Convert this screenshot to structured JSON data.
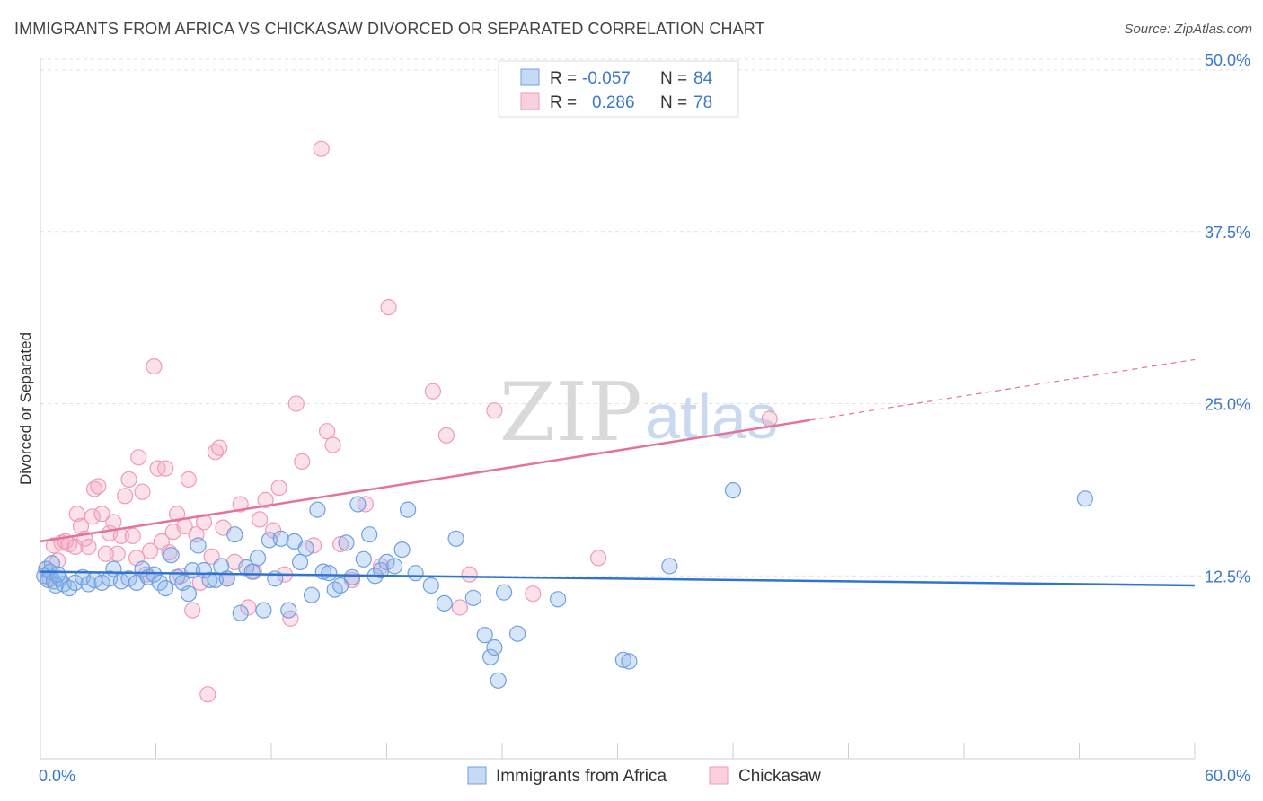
{
  "title": "IMMIGRANTS FROM AFRICA VS CHICKASAW DIVORCED OR SEPARATED CORRELATION CHART",
  "source": "Source: ZipAtlas.com",
  "watermark": {
    "zip": "ZIP",
    "atlas": "atlas"
  },
  "legend_box": {
    "rows": [
      {
        "r_label": "R =",
        "r_value": "-0.057",
        "n_label": "N =",
        "n_value": "84"
      },
      {
        "r_label": "R =",
        "r_value": "0.286",
        "n_label": "N =",
        "n_value": "78"
      }
    ]
  },
  "bottom_legend": [
    "Immigrants from Africa",
    "Chickasaw"
  ],
  "chart_data": {
    "type": "scatter",
    "title": "IMMIGRANTS FROM AFRICA VS CHICKASAW DIVORCED OR SEPARATED CORRELATION CHART",
    "ylabel": "Divorced or Separated",
    "xlabel": "",
    "xlim": [
      0,
      60
    ],
    "ylim": [
      0,
      50
    ],
    "x_tick_labels": [
      "0.0%",
      "60.0%"
    ],
    "y_ticks": [
      12.5,
      25.0,
      37.5,
      50.0
    ],
    "y_tick_labels": [
      "12.5%",
      "25.0%",
      "37.5%",
      "50.0%"
    ],
    "grid": "horizontal dashed",
    "colors": {
      "africa": "#6fa0e0",
      "chickasaw": "#f09ab8",
      "africa_line": "#2f74d0",
      "chickasaw_line": "#e4739a",
      "tick": "#3b78c7"
    },
    "series": [
      {
        "name": "Immigrants from Africa",
        "color": "#6fa0e0",
        "trend": {
          "x0": 0,
          "y0": 12.8,
          "x1": 60,
          "y1": 11.8
        },
        "points": [
          [
            0.2,
            12.5
          ],
          [
            0.3,
            13.0
          ],
          [
            0.4,
            12.2
          ],
          [
            0.5,
            12.8
          ],
          [
            0.6,
            13.4
          ],
          [
            0.7,
            12.1
          ],
          [
            0.8,
            11.8
          ],
          [
            1.0,
            12.3
          ],
          [
            1.2,
            11.9
          ],
          [
            1.5,
            11.6
          ],
          [
            1.8,
            12.0
          ],
          [
            2.2,
            12.4
          ],
          [
            2.5,
            11.9
          ],
          [
            2.8,
            12.2
          ],
          [
            3.2,
            12.0
          ],
          [
            3.6,
            12.3
          ],
          [
            3.8,
            13.0
          ],
          [
            4.2,
            12.1
          ],
          [
            4.6,
            12.3
          ],
          [
            5.0,
            12.0
          ],
          [
            5.3,
            13.0
          ],
          [
            5.6,
            12.4
          ],
          [
            5.9,
            12.6
          ],
          [
            6.2,
            12.0
          ],
          [
            6.5,
            11.6
          ],
          [
            6.8,
            14.0
          ],
          [
            7.1,
            12.4
          ],
          [
            7.4,
            12.0
          ],
          [
            7.7,
            11.2
          ],
          [
            7.9,
            12.9
          ],
          [
            8.2,
            14.7
          ],
          [
            8.5,
            12.9
          ],
          [
            8.8,
            12.2
          ],
          [
            9.1,
            12.2
          ],
          [
            9.4,
            13.2
          ],
          [
            9.7,
            12.3
          ],
          [
            10.1,
            15.5
          ],
          [
            10.4,
            9.8
          ],
          [
            10.7,
            13.1
          ],
          [
            11.0,
            12.8
          ],
          [
            11.3,
            13.8
          ],
          [
            11.6,
            10.0
          ],
          [
            11.9,
            15.1
          ],
          [
            12.2,
            12.3
          ],
          [
            12.5,
            15.2
          ],
          [
            12.9,
            10.0
          ],
          [
            13.2,
            15.0
          ],
          [
            13.5,
            13.5
          ],
          [
            13.8,
            14.5
          ],
          [
            14.1,
            11.1
          ],
          [
            14.4,
            17.3
          ],
          [
            14.7,
            12.8
          ],
          [
            15.0,
            12.7
          ],
          [
            15.3,
            11.5
          ],
          [
            15.6,
            11.8
          ],
          [
            15.9,
            14.9
          ],
          [
            16.2,
            12.4
          ],
          [
            16.5,
            17.7
          ],
          [
            16.8,
            13.7
          ],
          [
            17.1,
            15.5
          ],
          [
            17.4,
            12.5
          ],
          [
            17.7,
            12.9
          ],
          [
            18.0,
            13.5
          ],
          [
            18.4,
            13.2
          ],
          [
            18.8,
            14.4
          ],
          [
            19.1,
            17.3
          ],
          [
            19.5,
            12.7
          ],
          [
            20.3,
            11.8
          ],
          [
            21.0,
            10.5
          ],
          [
            21.6,
            15.2
          ],
          [
            22.5,
            10.9
          ],
          [
            23.1,
            8.2
          ],
          [
            23.4,
            6.6
          ],
          [
            23.6,
            7.3
          ],
          [
            23.8,
            4.9
          ],
          [
            24.1,
            11.3
          ],
          [
            24.8,
            8.3
          ],
          [
            26.9,
            10.8
          ],
          [
            30.3,
            6.4
          ],
          [
            30.6,
            6.3
          ],
          [
            32.7,
            13.2
          ],
          [
            36.0,
            18.7
          ],
          [
            54.3,
            18.1
          ],
          [
            0.9,
            12.6
          ]
        ]
      },
      {
        "name": "Chickasaw",
        "color": "#f09ab8",
        "trend": {
          "x0": 0,
          "y0": 15.0,
          "x1": 40,
          "y1": 23.8
        },
        "trend_dashed": {
          "x0": 40,
          "y0": 23.8,
          "x1": 60,
          "y1": 28.2
        },
        "points": [
          [
            0.3,
            13.0
          ],
          [
            0.5,
            12.3
          ],
          [
            0.7,
            14.7
          ],
          [
            0.9,
            13.6
          ],
          [
            1.1,
            14.9
          ],
          [
            1.3,
            15.0
          ],
          [
            1.5,
            14.8
          ],
          [
            1.8,
            14.6
          ],
          [
            1.9,
            17.0
          ],
          [
            2.1,
            16.1
          ],
          [
            2.3,
            15.2
          ],
          [
            2.5,
            14.6
          ],
          [
            2.7,
            16.8
          ],
          [
            2.8,
            18.8
          ],
          [
            3.0,
            19.0
          ],
          [
            3.2,
            17.0
          ],
          [
            3.4,
            14.1
          ],
          [
            3.6,
            15.6
          ],
          [
            3.8,
            16.4
          ],
          [
            4.0,
            14.1
          ],
          [
            4.2,
            15.4
          ],
          [
            4.4,
            18.3
          ],
          [
            4.6,
            19.5
          ],
          [
            4.8,
            15.4
          ],
          [
            5.0,
            13.8
          ],
          [
            5.1,
            21.1
          ],
          [
            5.3,
            18.6
          ],
          [
            5.5,
            12.6
          ],
          [
            5.7,
            14.3
          ],
          [
            5.9,
            27.7
          ],
          [
            6.1,
            20.3
          ],
          [
            6.3,
            15.0
          ],
          [
            6.5,
            20.3
          ],
          [
            6.7,
            14.2
          ],
          [
            6.9,
            15.7
          ],
          [
            7.1,
            17.0
          ],
          [
            7.3,
            12.5
          ],
          [
            7.5,
            16.1
          ],
          [
            7.7,
            19.5
          ],
          [
            7.9,
            10.0
          ],
          [
            8.1,
            15.5
          ],
          [
            8.3,
            12.0
          ],
          [
            8.5,
            16.4
          ],
          [
            8.7,
            3.9
          ],
          [
            8.9,
            13.9
          ],
          [
            9.1,
            21.5
          ],
          [
            9.3,
            21.8
          ],
          [
            9.5,
            16.0
          ],
          [
            9.7,
            12.3
          ],
          [
            10.1,
            13.5
          ],
          [
            10.4,
            17.7
          ],
          [
            10.8,
            10.2
          ],
          [
            11.1,
            12.8
          ],
          [
            11.4,
            16.6
          ],
          [
            11.7,
            18.0
          ],
          [
            12.1,
            15.8
          ],
          [
            12.4,
            18.9
          ],
          [
            12.7,
            12.6
          ],
          [
            13.0,
            9.4
          ],
          [
            13.3,
            25.0
          ],
          [
            13.6,
            20.8
          ],
          [
            14.2,
            14.7
          ],
          [
            14.6,
            43.5
          ],
          [
            14.9,
            23.0
          ],
          [
            15.2,
            22.0
          ],
          [
            15.6,
            14.8
          ],
          [
            16.2,
            12.2
          ],
          [
            16.9,
            17.7
          ],
          [
            17.7,
            13.2
          ],
          [
            18.1,
            32.0
          ],
          [
            20.4,
            25.9
          ],
          [
            21.1,
            22.7
          ],
          [
            21.8,
            10.2
          ],
          [
            22.3,
            12.6
          ],
          [
            23.6,
            24.5
          ],
          [
            25.6,
            11.2
          ],
          [
            37.9,
            23.9
          ],
          [
            29.0,
            13.8
          ]
        ]
      }
    ]
  }
}
